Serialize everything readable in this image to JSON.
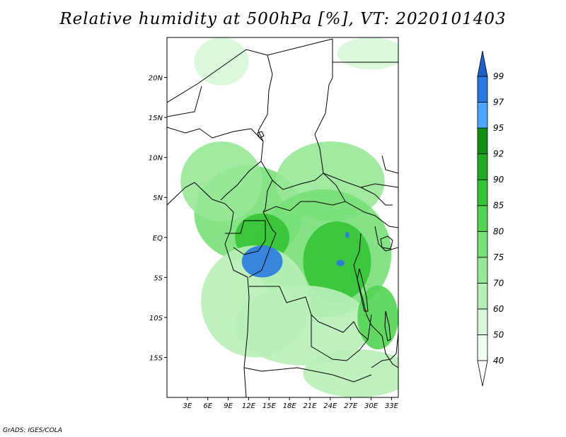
{
  "title": "Relative humidity at 500hPa [%], VT: 2020101403",
  "credit": "GrADS: IGES/COLA",
  "map": {
    "projection": "latlon",
    "lon_range": [
      0,
      34
    ],
    "lat_range": [
      -20,
      25
    ],
    "x_ticks": [
      {
        "value": 3,
        "label": "3E"
      },
      {
        "value": 6,
        "label": "6E"
      },
      {
        "value": 9,
        "label": "9E"
      },
      {
        "value": 12,
        "label": "12E"
      },
      {
        "value": 15,
        "label": "15E"
      },
      {
        "value": 18,
        "label": "18E"
      },
      {
        "value": 21,
        "label": "21E"
      },
      {
        "value": 24,
        "label": "24E"
      },
      {
        "value": 27,
        "label": "27E"
      },
      {
        "value": 30,
        "label": "30E"
      },
      {
        "value": 33,
        "label": "33E"
      }
    ],
    "y_ticks": [
      {
        "value": 20,
        "label": "20N"
      },
      {
        "value": 15,
        "label": "15N"
      },
      {
        "value": 10,
        "label": "10N"
      },
      {
        "value": 5,
        "label": "5N"
      },
      {
        "value": 0,
        "label": "EQ"
      },
      {
        "value": -5,
        "label": "5S"
      },
      {
        "value": -10,
        "label": "10S"
      },
      {
        "value": -15,
        "label": "15S"
      }
    ],
    "border_color": "#000000",
    "humid_patches": [
      {
        "lon": 12,
        "lat": 3,
        "rx": 8,
        "ry": 6,
        "level": 75
      },
      {
        "lon": 8,
        "lat": 7,
        "rx": 6,
        "ry": 5,
        "level": 70
      },
      {
        "lon": 24,
        "lat": 7,
        "rx": 8,
        "ry": 5,
        "level": 70
      },
      {
        "lon": 23,
        "lat": -2,
        "rx": 10,
        "ry": 8,
        "level": 75
      },
      {
        "lon": 25,
        "lat": -3,
        "rx": 5,
        "ry": 5,
        "level": 85
      },
      {
        "lon": 14,
        "lat": 0,
        "rx": 4,
        "ry": 3,
        "level": 85
      },
      {
        "lon": 13,
        "lat": -8,
        "rx": 8,
        "ry": 7,
        "level": 60
      },
      {
        "lon": 20,
        "lat": -11,
        "rx": 10,
        "ry": 5,
        "level": 60
      },
      {
        "lon": 31,
        "lat": -10,
        "rx": 3,
        "ry": 4,
        "level": 80
      },
      {
        "lon": 28,
        "lat": -17,
        "rx": 8,
        "ry": 3,
        "level": 60
      },
      {
        "lon": 8,
        "lat": 22,
        "rx": 4,
        "ry": 3,
        "level": 50
      },
      {
        "lon": 30,
        "lat": 23,
        "rx": 5,
        "ry": 2,
        "level": 50
      },
      {
        "lon": 14,
        "lat": -3,
        "rx": 3,
        "ry": 2,
        "level": 97
      },
      {
        "lon": 25.5,
        "lat": -3.2,
        "rx": 0.6,
        "ry": 0.4,
        "level": 97
      },
      {
        "lon": 26.5,
        "lat": 0.3,
        "rx": 0.3,
        "ry": 0.4,
        "level": 97
      }
    ]
  },
  "colorbar": {
    "levels": [
      {
        "label": "40",
        "color": "#f0fff0"
      },
      {
        "label": "50",
        "color": "#d8f7d8"
      },
      {
        "label": "60",
        "color": "#b8efb8"
      },
      {
        "label": "70",
        "color": "#98e898"
      },
      {
        "label": "75",
        "color": "#78e078"
      },
      {
        "label": "80",
        "color": "#52d452"
      },
      {
        "label": "85",
        "color": "#34c334"
      },
      {
        "label": "90",
        "color": "#22aa22"
      },
      {
        "label": "92",
        "color": "#138f13"
      },
      {
        "label": "95",
        "color": "#4da6ff"
      },
      {
        "label": "97",
        "color": "#2979e0"
      },
      {
        "label": "99",
        "color": "#1e5fc8"
      }
    ],
    "bottom_triangle_color": "#ffffff",
    "top_triangle_color": "#1e5fc8"
  }
}
